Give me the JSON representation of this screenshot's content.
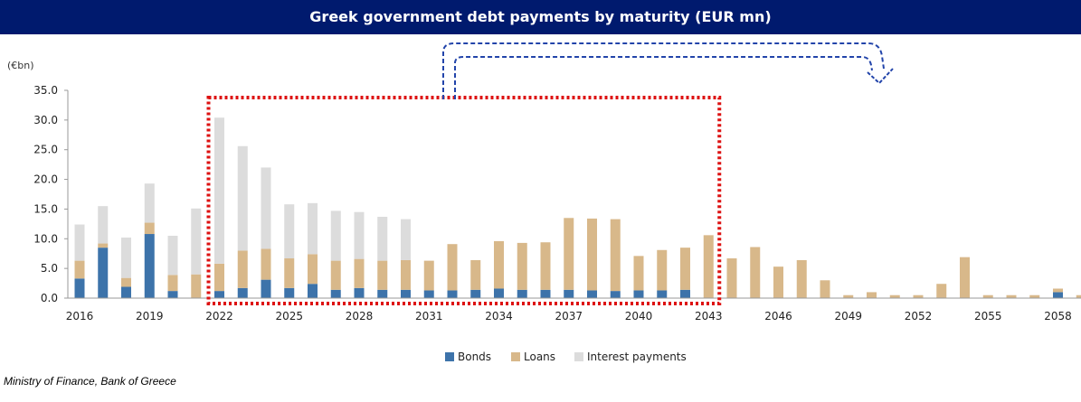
{
  "title": "Greek government debt payments by maturity (EUR mn)",
  "source": "Ministry of Finance, Bank of Greece",
  "colors": {
    "bonds": "#3d73aa",
    "loans": "#d8b88a",
    "interest": "#dcdcdc",
    "highlight_box": "#dd1111",
    "arrow": "#2244aa"
  },
  "chart_data": {
    "type": "bar",
    "stacked": true,
    "unit_label": "(€bn)",
    "ylim": [
      0,
      35
    ],
    "y_ticks": [
      "0.0",
      "5.0",
      "10.0",
      "15.0",
      "20.0",
      "25.0",
      "30.0",
      "35.0"
    ],
    "x_tick_labels": [
      "2016",
      "2019",
      "2022",
      "2025",
      "2028",
      "2031",
      "2034",
      "2037",
      "2040",
      "2043",
      "2046",
      "2049",
      "2052",
      "2055",
      "2058"
    ],
    "categories": [
      2016,
      2017,
      2018,
      2019,
      2020,
      2021,
      2022,
      2023,
      2024,
      2025,
      2026,
      2027,
      2028,
      2029,
      2030,
      2031,
      2032,
      2033,
      2034,
      2035,
      2036,
      2037,
      2038,
      2039,
      2040,
      2041,
      2042,
      2043,
      2044,
      2045,
      2046,
      2047,
      2048,
      2049,
      2050,
      2051,
      2052,
      2053,
      2054,
      2055,
      2056,
      2057,
      2058,
      2059
    ],
    "series": [
      {
        "name": "Bonds",
        "values": [
          3.3,
          8.5,
          1.9,
          10.8,
          1.2,
          0,
          1.2,
          1.7,
          3.1,
          1.7,
          2.4,
          1.4,
          1.7,
          1.4,
          1.4,
          1.3,
          1.3,
          1.4,
          1.6,
          1.4,
          1.4,
          1.4,
          1.3,
          1.2,
          1.3,
          1.3,
          1.4,
          0,
          0,
          0,
          0,
          0,
          0,
          0,
          0,
          0,
          0,
          0,
          0,
          0,
          0,
          0,
          1.0,
          0
        ]
      },
      {
        "name": "Loans",
        "values": [
          3.0,
          0.7,
          1.5,
          1.9,
          2.7,
          4.0,
          4.6,
          6.3,
          5.2,
          5.0,
          5.0,
          4.9,
          4.9,
          4.9,
          5.0,
          5.0,
          7.8,
          5.0,
          8.0,
          7.9,
          8.0,
          12.1,
          12.1,
          12.1,
          5.8,
          6.8,
          7.1,
          10.6,
          6.7,
          8.6,
          5.3,
          6.4,
          3.0,
          0.5,
          1.0,
          0.5,
          0.5,
          2.4,
          6.9,
          0.5,
          0.5,
          0.5,
          0.6,
          0.5
        ]
      },
      {
        "name": "Interest payments",
        "values": [
          6.1,
          6.3,
          6.8,
          6.6,
          6.6,
          11.1,
          24.6,
          17.6,
          13.7,
          9.1,
          8.6,
          8.4,
          7.9,
          7.4,
          6.9,
          0,
          0,
          0,
          0,
          0,
          0,
          0,
          0,
          0,
          0,
          0,
          0,
          0,
          0,
          0,
          0,
          0,
          0,
          0,
          0,
          0,
          0,
          0,
          0,
          0,
          0,
          0,
          0,
          0
        ]
      }
    ],
    "legend_position": "bottom-center",
    "annotations": [
      "dotted red box spanning 2022-2043",
      "dashed blue arrow pointing right beyond 2043"
    ]
  }
}
